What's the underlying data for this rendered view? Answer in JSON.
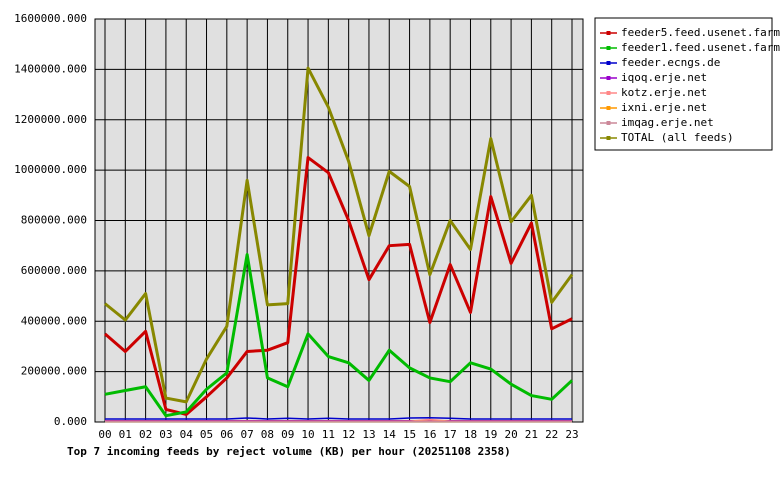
{
  "chart_data": {
    "type": "line",
    "title": "Top 7 incoming feeds by reject volume (KB) per hour (20251108 2358)",
    "categories": [
      "00",
      "01",
      "02",
      "03",
      "04",
      "05",
      "06",
      "07",
      "08",
      "09",
      "10",
      "11",
      "12",
      "13",
      "14",
      "15",
      "16",
      "17",
      "18",
      "19",
      "20",
      "21",
      "22",
      "23"
    ],
    "ylim": [
      0,
      1600000
    ],
    "yticks": [
      {
        "value": 0,
        "label": "0.000"
      },
      {
        "value": 200000,
        "label": "200000.000"
      },
      {
        "value": 400000,
        "label": "400000.000"
      },
      {
        "value": 600000,
        "label": "600000.000"
      },
      {
        "value": 800000,
        "label": "800000.000"
      },
      {
        "value": 1000000,
        "label": "1000000.000"
      },
      {
        "value": 1200000,
        "label": "1200000.000"
      },
      {
        "value": 1400000,
        "label": "1400000.000"
      },
      {
        "value": 1600000,
        "label": "1600000.000"
      }
    ],
    "grid": true,
    "series": [
      {
        "name": "feeder5.feed.usenet.farm",
        "color": "#cc0000",
        "values": [
          350000,
          280000,
          360000,
          50000,
          30000,
          100000,
          175000,
          280000,
          285000,
          315000,
          1050000,
          990000,
          800000,
          565000,
          700000,
          705000,
          395000,
          625000,
          435000,
          895000,
          630000,
          790000,
          370000,
          410000
        ]
      },
      {
        "name": "feeder1.feed.usenet.farm",
        "color": "#00bb00",
        "values": [
          110000,
          125000,
          140000,
          25000,
          40000,
          130000,
          195000,
          665000,
          175000,
          140000,
          350000,
          260000,
          235000,
          165000,
          285000,
          215000,
          175000,
          160000,
          235000,
          210000,
          150000,
          105000,
          90000,
          165000
        ]
      },
      {
        "name": "feeder.ecngs.de",
        "color": "#0000cc",
        "values": [
          12000,
          12000,
          12000,
          12000,
          12000,
          12000,
          12000,
          16000,
          12000,
          15000,
          12000,
          15000,
          12000,
          12000,
          12000,
          16000,
          17000,
          15000,
          12000,
          12000,
          12000,
          12000,
          12000,
          12000
        ]
      },
      {
        "name": "iqoq.erje.net",
        "color": "#9900cc",
        "values": [
          5000,
          5000,
          5000,
          5000,
          5000,
          5000,
          5000,
          5000,
          5000,
          5000,
          5000,
          5000,
          5000,
          5000,
          5000,
          5000,
          5000,
          5000,
          5000,
          5000,
          5000,
          5000,
          5000,
          5000
        ]
      },
      {
        "name": "kotz.erje.net",
        "color": "#ff8888",
        "values": [
          3000,
          3000,
          3000,
          3000,
          3000,
          3000,
          3000,
          3000,
          3000,
          3000,
          3000,
          3000,
          3000,
          3000,
          3000,
          3000,
          10000,
          3000,
          3000,
          3000,
          3000,
          3000,
          3000,
          3000
        ]
      },
      {
        "name": "ixni.erje.net",
        "color": "#ff9900",
        "values": [
          2000,
          2000,
          2000,
          2000,
          2000,
          2000,
          2000,
          2000,
          2000,
          2000,
          2000,
          2000,
          2000,
          2000,
          2000,
          2000,
          2000,
          2000,
          2000,
          2000,
          2000,
          2000,
          2000,
          2000
        ]
      },
      {
        "name": "imqag.erje.net",
        "color": "#cc8899",
        "values": [
          2000,
          2000,
          2000,
          2000,
          2000,
          2000,
          2000,
          2000,
          2000,
          2000,
          2000,
          2000,
          2000,
          2000,
          2000,
          2000,
          2000,
          2000,
          2000,
          2000,
          2000,
          2000,
          2000,
          2000
        ]
      },
      {
        "name": "TOTAL (all feeds)",
        "color": "#888800",
        "values": [
          470000,
          405000,
          510000,
          95000,
          80000,
          250000,
          380000,
          960000,
          465000,
          470000,
          1405000,
          1250000,
          1035000,
          740000,
          995000,
          935000,
          585000,
          800000,
          685000,
          1125000,
          795000,
          900000,
          475000,
          585000
        ]
      }
    ]
  }
}
